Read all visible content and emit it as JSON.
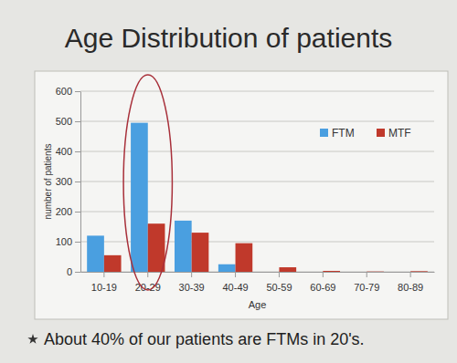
{
  "chart_data": {
    "type": "bar",
    "title": "Age Distribution of patients",
    "categories": [
      "10-19",
      "20-29",
      "30-39",
      "40-49",
      "50-59",
      "60-69",
      "70-79",
      "80-89"
    ],
    "series": [
      {
        "name": "FTM",
        "color": "#4a9fe0",
        "values": [
          120,
          495,
          170,
          25,
          0,
          0,
          0,
          0
        ]
      },
      {
        "name": "MTF",
        "color": "#c0392b",
        "values": [
          55,
          160,
          130,
          95,
          15,
          3,
          1,
          2
        ]
      }
    ],
    "x_label": "Age",
    "y_label": "number of patients",
    "ylim": [
      0,
      600
    ],
    "yticks": [
      0,
      100,
      200,
      300,
      400,
      500,
      600
    ],
    "grid": true,
    "legend": "top-right",
    "annotations": [
      "About 40% of our patients are FTMs in 20's."
    ]
  }
}
